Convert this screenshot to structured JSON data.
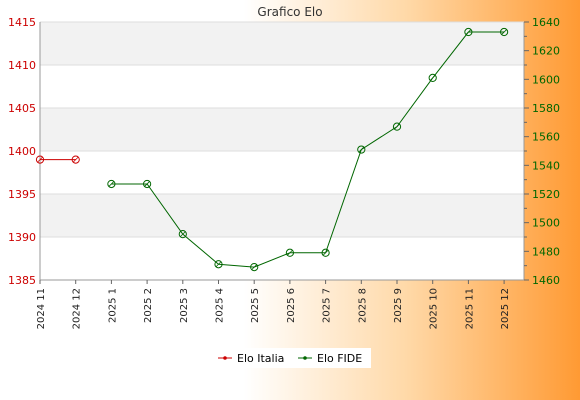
{
  "chart_data": {
    "type": "line",
    "title": "Grafico Elo",
    "categories": [
      "2024 11",
      "2024 12",
      "2025 1",
      "2025 2",
      "2025 3",
      "2025 4",
      "2025 5",
      "2025 6",
      "2025 7",
      "2025 8",
      "2025 9",
      "2025 10",
      "2025 11",
      "2025 12"
    ],
    "series": [
      {
        "name": "Elo Italia",
        "axis": "left",
        "color": "#cc0000",
        "values": [
          1399,
          1399,
          null,
          null,
          null,
          null,
          null,
          null,
          null,
          null,
          null,
          null,
          null,
          null
        ]
      },
      {
        "name": "Elo FIDE",
        "axis": "right",
        "color": "#006600",
        "values": [
          null,
          null,
          1527,
          1527,
          1492,
          1471,
          1469,
          1479,
          1479,
          1551,
          1567,
          1601,
          1633,
          1633
        ]
      }
    ],
    "y_left": {
      "min": 1385,
      "max": 1415,
      "ticks": [
        1385,
        1390,
        1395,
        1400,
        1405,
        1410,
        1415
      ],
      "color": "#cc0000"
    },
    "y_right": {
      "min": 1460,
      "max": 1640,
      "ticks": [
        1460,
        1480,
        1500,
        1520,
        1540,
        1560,
        1580,
        1600,
        1620,
        1640
      ],
      "color": "#006600"
    },
    "grid": true,
    "legend_position": "bottom-center"
  }
}
